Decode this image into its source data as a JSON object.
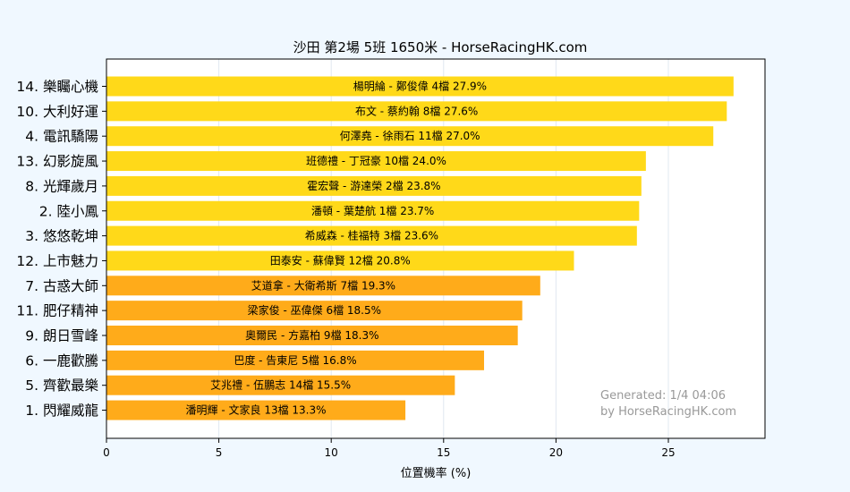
{
  "chart_data": {
    "type": "bar",
    "orientation": "horizontal",
    "title": "沙田  第2場  5班  1650米 - HorseRacingHK.com",
    "xlabel": "位置機率 (%)",
    "ylabel": "",
    "xlim": [
      0,
      29.3
    ],
    "xticks": [
      0,
      5,
      10,
      15,
      20,
      25
    ],
    "grid": "x",
    "colors": {
      "top": "#FFD919",
      "rest": "#FFAB1A",
      "background": "#f0f8ff",
      "plot_bg": "#ffffff",
      "grid": "#e0e8f0",
      "watermark": "#999999"
    },
    "bars": [
      {
        "horse": "14. 樂矚心機",
        "label": "楊明綸 - 鄭俊偉 4檔  27.9%",
        "value": 27.9,
        "group": "top"
      },
      {
        "horse": "10. 大利好運",
        "label": "布文 - 蔡約翰 8檔  27.6%",
        "value": 27.6,
        "group": "top"
      },
      {
        "horse": "4. 電訊驕陽",
        "label": "何澤堯 - 徐雨石 11檔  27.0%",
        "value": 27.0,
        "group": "top"
      },
      {
        "horse": "13. 幻影旋風",
        "label": "班德禮 - 丁冠豪 10檔  24.0%",
        "value": 24.0,
        "group": "top"
      },
      {
        "horse": "8. 光輝歲月",
        "label": "霍宏聲 - 游達榮 2檔  23.8%",
        "value": 23.8,
        "group": "top"
      },
      {
        "horse": "2. 陸小鳳",
        "label": "潘頓 - 葉楚航 1檔  23.7%",
        "value": 23.7,
        "group": "top"
      },
      {
        "horse": "3. 悠悠乾坤",
        "label": "希威森 - 桂福特 3檔  23.6%",
        "value": 23.6,
        "group": "top"
      },
      {
        "horse": "12. 上市魅力",
        "label": "田泰安 - 蘇偉賢 12檔  20.8%",
        "value": 20.8,
        "group": "top"
      },
      {
        "horse": "7. 古惑大師",
        "label": "艾道拿 - 大衛希斯 7檔  19.3%",
        "value": 19.3,
        "group": "rest"
      },
      {
        "horse": "11. 肥仔精神",
        "label": "梁家俊 - 巫偉傑 6檔  18.5%",
        "value": 18.5,
        "group": "rest"
      },
      {
        "horse": "9. 朗日雪峰",
        "label": "奧爾民 - 方嘉柏 9檔  18.3%",
        "value": 18.3,
        "group": "rest"
      },
      {
        "horse": "6. 一鹿歡騰",
        "label": "巴度 - 告東尼 5檔  16.8%",
        "value": 16.8,
        "group": "rest"
      },
      {
        "horse": "5. 齊歡最樂",
        "label": "艾兆禮 - 伍鵬志 14檔  15.5%",
        "value": 15.5,
        "group": "rest"
      },
      {
        "horse": "1. 閃耀威龍",
        "label": "潘明輝 - 文家良 13檔  13.3%",
        "value": 13.3,
        "group": "rest"
      }
    ],
    "annotation": {
      "line1": "Generated: 1/4 04:06",
      "line2": "by HorseRacingHK.com",
      "placement": "bottom-right"
    }
  }
}
